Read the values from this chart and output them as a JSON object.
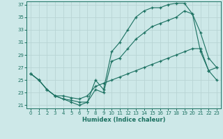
{
  "xlabel": "Humidex (Indice chaleur)",
  "background_color": "#cde8e8",
  "grid_color": "#b8d4d4",
  "line_color": "#1a7060",
  "xlim": [
    -0.5,
    23.5
  ],
  "ylim": [
    20.5,
    37.5
  ],
  "xticks": [
    0,
    1,
    2,
    3,
    4,
    5,
    6,
    7,
    8,
    9,
    10,
    11,
    12,
    13,
    14,
    15,
    16,
    17,
    18,
    19,
    20,
    21,
    22,
    23
  ],
  "yticks": [
    21,
    23,
    25,
    27,
    29,
    31,
    33,
    35,
    37
  ],
  "series1_x": [
    0,
    1,
    2,
    3,
    4,
    5,
    6,
    7,
    8,
    9,
    10,
    11,
    12,
    13,
    14,
    15,
    16,
    17,
    18,
    19,
    20,
    21,
    22,
    23
  ],
  "series1_y": [
    26.0,
    25.0,
    23.5,
    22.5,
    22.0,
    21.5,
    21.0,
    21.5,
    25.0,
    23.5,
    29.5,
    31.0,
    33.0,
    35.0,
    36.0,
    36.5,
    36.5,
    37.0,
    37.2,
    37.2,
    35.5,
    32.5,
    28.5,
    27.0
  ],
  "series2_x": [
    0,
    1,
    2,
    3,
    4,
    5,
    6,
    7,
    8,
    9,
    10,
    11,
    12,
    13,
    14,
    15,
    16,
    17,
    18,
    19,
    20,
    21,
    22,
    23
  ],
  "series2_y": [
    26.0,
    25.0,
    23.5,
    22.5,
    22.0,
    21.8,
    21.5,
    21.5,
    23.5,
    23.0,
    28.0,
    28.5,
    30.0,
    31.5,
    32.5,
    33.5,
    34.0,
    34.5,
    35.0,
    36.0,
    35.5,
    29.5,
    26.5,
    25.0
  ],
  "series3_x": [
    0,
    1,
    2,
    3,
    4,
    5,
    6,
    7,
    8,
    9,
    10,
    11,
    12,
    13,
    14,
    15,
    16,
    17,
    18,
    19,
    20,
    21,
    22,
    23
  ],
  "series3_y": [
    26.0,
    25.0,
    23.5,
    22.5,
    22.5,
    22.2,
    22.0,
    22.5,
    24.0,
    24.5,
    25.0,
    25.5,
    26.0,
    26.5,
    27.0,
    27.5,
    28.0,
    28.5,
    29.0,
    29.5,
    30.0,
    30.0,
    26.5,
    27.0
  ]
}
